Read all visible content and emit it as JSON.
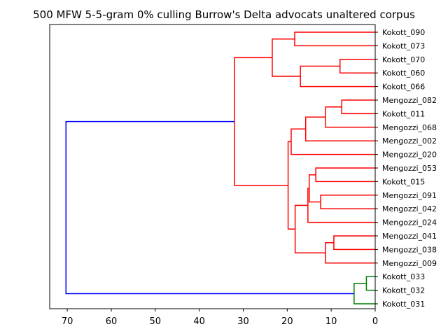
{
  "chart_data": {
    "type": "dendrogram",
    "title": "500 MFW 5-5-gram 0% culling Burrow's Delta advocats unaltered corpus",
    "xlabel": "",
    "ylabel": "",
    "xlim": [
      74,
      0
    ],
    "x_ticks": [
      70,
      60,
      50,
      40,
      30,
      20,
      10,
      0
    ],
    "grid": false,
    "colors": {
      "main": "#ff0000",
      "minor": "#008000",
      "root": "#0000ff",
      "axis": "#000000"
    },
    "leaves": [
      "Kokott_090",
      "Kokott_073",
      "Kokott_070",
      "Kokott_060",
      "Kokott_066",
      "Mengozzi_082",
      "Kokott_011",
      "Mengozzi_068",
      "Mengozzi_002",
      "Mengozzi_020",
      "Mengozzi_053",
      "Kokott_015",
      "Mengozzi_091",
      "Mengozzi_042",
      "Mengozzi_024",
      "Mengozzi_041",
      "Mengozzi_038",
      "Mengozzi_009",
      "Kokott_033",
      "Kokott_032",
      "Kokott_031"
    ],
    "merges": [
      {
        "id": "n1",
        "left": "Kokott_090",
        "right": "Kokott_073",
        "height": 18.3,
        "color": "main"
      },
      {
        "id": "n2",
        "left": "Kokott_070",
        "right": "Kokott_060",
        "height": 8.0,
        "color": "main"
      },
      {
        "id": "n3",
        "left": "n2",
        "right": "Kokott_066",
        "height": 17.0,
        "color": "main"
      },
      {
        "id": "n4",
        "left": "n1",
        "right": "n3",
        "height": 23.4,
        "color": "main"
      },
      {
        "id": "n5",
        "left": "Mengozzi_082",
        "right": "Kokott_011",
        "height": 7.6,
        "color": "main"
      },
      {
        "id": "n6",
        "left": "n5",
        "right": "Mengozzi_068",
        "height": 11.3,
        "color": "main"
      },
      {
        "id": "n7",
        "left": "n6",
        "right": "Mengozzi_002",
        "height": 15.8,
        "color": "main"
      },
      {
        "id": "n8",
        "left": "n7",
        "right": "Mengozzi_020",
        "height": 19.1,
        "color": "main"
      },
      {
        "id": "n9",
        "left": "Mengozzi_053",
        "right": "Kokott_015",
        "height": 13.5,
        "color": "main"
      },
      {
        "id": "n10",
        "left": "Mengozzi_091",
        "right": "Mengozzi_042",
        "height": 12.4,
        "color": "main"
      },
      {
        "id": "n11",
        "left": "n9",
        "right": "n10",
        "height": 15.0,
        "color": "main"
      },
      {
        "id": "n12",
        "left": "n11",
        "right": "Mengozzi_024",
        "height": 15.3,
        "color": "main"
      },
      {
        "id": "n13",
        "left": "Mengozzi_041",
        "right": "Mengozzi_038",
        "height": 9.4,
        "color": "main"
      },
      {
        "id": "n14",
        "left": "n13",
        "right": "Mengozzi_009",
        "height": 11.3,
        "color": "main"
      },
      {
        "id": "n15",
        "left": "n12",
        "right": "n14",
        "height": 18.2,
        "color": "main"
      },
      {
        "id": "n16",
        "left": "n8",
        "right": "n15",
        "height": 19.8,
        "color": "main"
      },
      {
        "id": "n17",
        "left": "n4",
        "right": "n16",
        "height": 32.0,
        "color": "main"
      },
      {
        "id": "n18",
        "left": "Kokott_033",
        "right": "Kokott_032",
        "height": 2.0,
        "color": "minor"
      },
      {
        "id": "n19",
        "left": "n18",
        "right": "Kokott_031",
        "height": 4.8,
        "color": "minor"
      },
      {
        "id": "n20",
        "left": "n17",
        "right": "n19",
        "height": 70.3,
        "color": "root"
      }
    ]
  }
}
